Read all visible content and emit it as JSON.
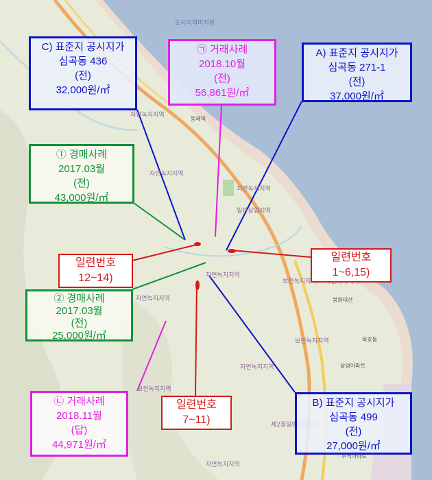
{
  "map_labels": {
    "sea_zone": "도시지역미지정",
    "zone1": "자연녹지지역",
    "zone2": "자연녹지지역",
    "zone3": "일반상업지역",
    "zone4": "자연녹지지역",
    "zone5": "보전녹지지역",
    "zone6": "자연녹지지역",
    "zone7": "보전녹지지역",
    "zone8": "자연녹지지역",
    "zone9": "자연녹지지역",
    "zone10": "자연녹지지역",
    "zone11": "보전녹지지역",
    "place1": "동해역",
    "place2": "봉화대산",
    "place3": "삼성아파트",
    "place4": "묵호동",
    "place5": "우석아파트",
    "place6": "제2동일반산업단지"
  },
  "annotations": {
    "C": {
      "line1": "C) 표준지 공시지가",
      "line2": "심곡동 436",
      "line3": "(전)",
      "line4": "32,000원/㎡"
    },
    "ga": {
      "line1": "㉠ 거래사례",
      "line2": "2018.10월",
      "line3": "(전)",
      "line4": "56,861원/㎡"
    },
    "A": {
      "line1": "A) 표준지 공시지가",
      "line2": "심곡동 271-1",
      "line3": "(전)",
      "line4": "37,000원/㎡"
    },
    "auction1": {
      "line1": "① 경매사례",
      "line2": "2017.03월",
      "line3": "(전)",
      "line4": "43,000원/㎡"
    },
    "auction2": {
      "line1": "② 경매사례",
      "line2": "2017.03월",
      "line3": "(전)",
      "line4": "25,000원/㎡"
    },
    "na": {
      "line1": "㉡ 거래사례",
      "line2": "2018.11월",
      "line3": "(답)",
      "line4": "44,971원/㎡"
    },
    "B": {
      "line1": "B) 표준지 공시지가",
      "line2": "심곡동 499",
      "line3": "(전)",
      "line4": "27,000원/㎡"
    }
  },
  "serial_labels": {
    "s12_14": "일련번호12~14)",
    "s1_6_15": "일련번호1~6,15)",
    "s7_11": "일련번호7~11)"
  },
  "colors": {
    "standard": "#0a14c8",
    "transaction": "#e41ee4",
    "auction": "#12913a",
    "subject": "#d41a1a",
    "sea": "#a9bed6"
  }
}
